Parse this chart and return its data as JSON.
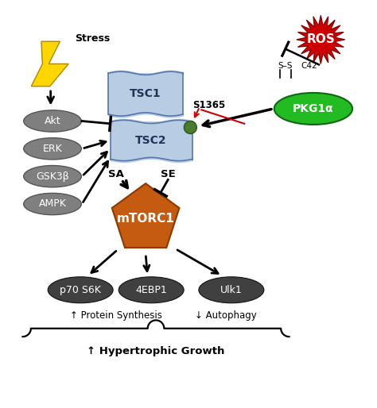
{
  "fig_width": 4.74,
  "fig_height": 5.14,
  "dpi": 100,
  "background": "#ffffff",
  "stress_label": "Stress",
  "ros_label": "ROS",
  "s1365_label": "S1365",
  "tsc1_label": "TSC1",
  "tsc2_label": "TSC2",
  "mtorc1_label": "mTORC1",
  "pkg1a_label": "PKG1α",
  "c42_label": "C42",
  "ss_label": "S–S",
  "akt_label": "Akt",
  "erk_label": "ERK",
  "gsk3b_label": "GSK3β",
  "ampk_label": "AMPK",
  "p70s6k_label": "p70 S6K",
  "ebp1_label": "4EBP1",
  "ulk1_label": "Ulk1",
  "sa_label": "SA",
  "se_label": "SE",
  "protein_synthesis_label": "↑ Protein Synthesis",
  "autophagy_label": "↓ Autophagy",
  "hypertrophic_label": "↑ Hypertrophic Growth",
  "ros_color": "#cc0000",
  "ros_text_color": "#ffffff",
  "pkg1a_color": "#22bb22",
  "pkg1a_text_color": "#ffffff",
  "tsc_color": "#b8cce4",
  "kinase_oval_color": "#7f7f7f",
  "kinase_text_color": "#ffffff",
  "mtorc1_color": "#c55a11",
  "mtorc1_text_color": "#ffffff",
  "substrate_color": "#404040",
  "substrate_text_color": "#ffffff",
  "s1365_dot_color": "#4a7c2f",
  "lightning_color": "#FFD700",
  "red_arrow_color": "#cc0000"
}
